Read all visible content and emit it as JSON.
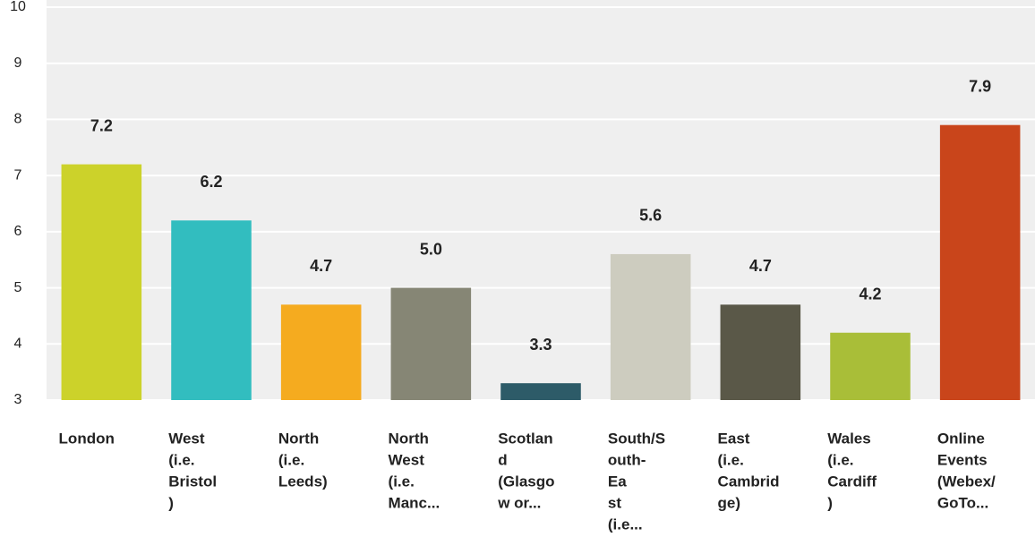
{
  "chart_data": {
    "type": "bar",
    "categories": [
      [
        "London"
      ],
      [
        "West",
        "(i.e.",
        "Bristol",
        ")"
      ],
      [
        "North",
        "(i.e.",
        "Leeds)"
      ],
      [
        "North",
        "West",
        "(i.e.",
        "Manc..."
      ],
      [
        "Scotlan",
        "d",
        "(Glasgo",
        "w or..."
      ],
      [
        "South/S",
        "outh-",
        "Ea",
        "st",
        "(i.e..."
      ],
      [
        "East",
        "(i.e.",
        "Cambrid",
        "ge)"
      ],
      [
        "Wales",
        "(i.e.",
        "Cardiff",
        ")"
      ],
      [
        "Online",
        "Events",
        "(Webex/",
        "GoTo..."
      ]
    ],
    "values": [
      7.2,
      6.2,
      4.7,
      5.0,
      3.3,
      5.6,
      4.7,
      4.2,
      7.9
    ],
    "value_labels": [
      "7.2",
      "6.2",
      "4.7",
      "5.0",
      "3.3",
      "5.6",
      "4.7",
      "4.2",
      "7.9"
    ],
    "colors": [
      "#ccd22a",
      "#32bdbf",
      "#f5ab1f",
      "#868675",
      "#2d5b68",
      "#cdccbf",
      "#5a5848",
      "#a9be38",
      "#c9451b"
    ],
    "ylim": [
      3,
      10
    ],
    "yticks": [
      3,
      4,
      5,
      6,
      7,
      8,
      9,
      10
    ],
    "grid": true
  }
}
